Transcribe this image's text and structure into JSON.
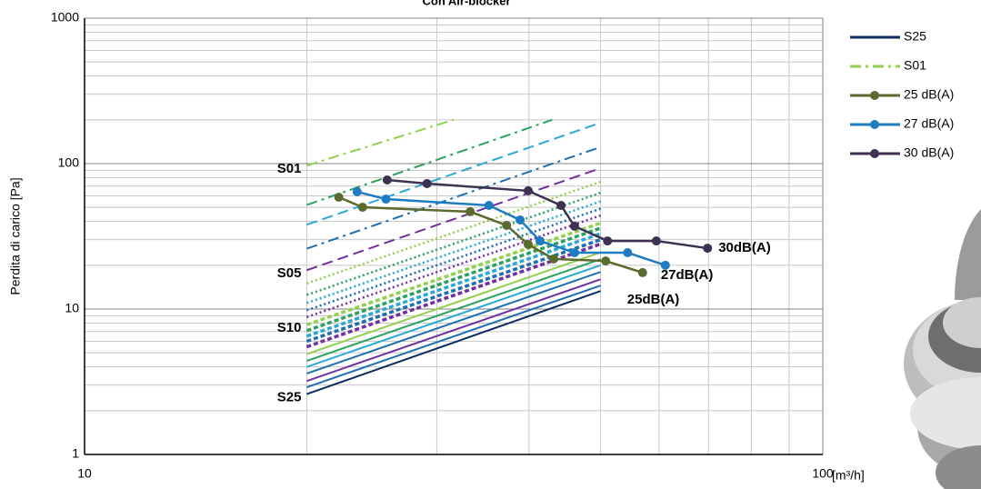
{
  "chart_data": {
    "type": "line",
    "title": "Con Air-blocker",
    "ylabel": "Perdita di carico [Pa]",
    "xlabel": "[m³/h]",
    "xlog": true,
    "ylog": true,
    "grid": true,
    "legend": "right",
    "xlim": [
      10,
      100
    ],
    "ylim": [
      1,
      1000
    ],
    "xticks": [
      10,
      100
    ],
    "yticks": [
      1,
      10,
      100,
      1000
    ],
    "xminorticks": [
      20,
      30,
      40,
      50,
      60,
      70,
      80,
      90
    ],
    "yminorticks": [
      2,
      3,
      4,
      5,
      6,
      7,
      8,
      9,
      20,
      30,
      40,
      50,
      60,
      70,
      80,
      90,
      200,
      300,
      400,
      500,
      600,
      700,
      800,
      900
    ],
    "series": [
      {
        "name": "S25",
        "color": "#0d2b5c",
        "dash": "solid",
        "tagged": true,
        "x": [
          20,
          50
        ],
        "values": [
          2.6,
          13.3
        ]
      },
      {
        "name": "S01",
        "color": "#92d050",
        "dash": "dashdot",
        "tagged": true,
        "x": [
          20,
          31.6
        ],
        "values": [
          97,
          200
        ]
      },
      {
        "name": "25 dB(A)",
        "color": "#5b6b2e",
        "markers": true,
        "label": "25dB(A)",
        "x": [
          22.1,
          23.8,
          33.3,
          37.3,
          39.9,
          43.2,
          50.8,
          57.0
        ],
        "values": [
          58.7,
          50.1,
          46.7,
          37.6,
          27.8,
          22.1,
          21.4,
          17.8
        ]
      },
      {
        "name": "27 dB(A)",
        "color": "#1f7cc0",
        "markers": true,
        "label": "27dB(A)",
        "x": [
          23.4,
          25.6,
          35.3,
          38.9,
          41.4,
          46.1,
          54.4,
          61.2
        ],
        "values": [
          64.0,
          57.0,
          51.6,
          41.0,
          29.4,
          24.4,
          24.4,
          20.0
        ]
      },
      {
        "name": "30 dB(A)",
        "color": "#3e3152",
        "markers": true,
        "label": "30dB(A)",
        "x": [
          25.7,
          29.1,
          39.9,
          44.2,
          46.1,
          51.1,
          59.5,
          69.8
        ],
        "values": [
          77.2,
          72.9,
          65.0,
          51.6,
          37.1,
          29.4,
          29.4,
          26.2
        ]
      },
      {
        "color": "#2ca25f",
        "dash": "dashdot",
        "x": [
          20,
          43
        ],
        "values": [
          52,
          200
        ]
      },
      {
        "color": "#29a8d8",
        "dash": "dash",
        "x": [
          20,
          50
        ],
        "values": [
          38,
          191
        ]
      },
      {
        "color": "#1f6fb0",
        "dash": "dashdot",
        "x": [
          20,
          50
        ],
        "values": [
          26,
          130
        ]
      },
      {
        "color": "#7030a0",
        "dash": "dash",
        "label": "S05",
        "x": [
          20,
          50
        ],
        "values": [
          18.5,
          93
        ]
      },
      {
        "color": "#92d050",
        "dash": "dot",
        "x": [
          20,
          50
        ],
        "values": [
          15,
          75
        ]
      },
      {
        "color": "#2ca25f",
        "dash": "dot",
        "x": [
          20,
          50
        ],
        "values": [
          12.5,
          63
        ]
      },
      {
        "color": "#29a8d8",
        "dash": "dot",
        "x": [
          20,
          50
        ],
        "values": [
          11,
          55
        ]
      },
      {
        "color": "#1f6fb0",
        "dash": "dot",
        "x": [
          20,
          50
        ],
        "values": [
          9.8,
          49
        ]
      },
      {
        "color": "#7030a0",
        "dash": "dot",
        "x": [
          20,
          50
        ],
        "values": [
          8.8,
          44
        ]
      },
      {
        "color": "#92d050",
        "dash": "bigdash",
        "label": "S10",
        "x": [
          20,
          50
        ],
        "values": [
          7.8,
          39
        ]
      },
      {
        "color": "#2ca25f",
        "dash": "bigdash",
        "x": [
          20,
          50
        ],
        "values": [
          7.1,
          36
        ]
      },
      {
        "color": "#29a8d8",
        "dash": "bigdash",
        "x": [
          20,
          50
        ],
        "values": [
          6.5,
          33
        ]
      },
      {
        "color": "#1f6fb0",
        "dash": "bigdash",
        "x": [
          20,
          50
        ],
        "values": [
          6.0,
          30
        ]
      },
      {
        "color": "#7030a0",
        "dash": "bigdash",
        "x": [
          20,
          50
        ],
        "values": [
          5.5,
          28
        ]
      },
      {
        "color": "#92d050",
        "dash": "solid",
        "x": [
          20,
          50
        ],
        "values": [
          4.9,
          24.5
        ]
      },
      {
        "color": "#2ca25f",
        "dash": "solid",
        "x": [
          20,
          50
        ],
        "values": [
          4.4,
          22
        ]
      },
      {
        "color": "#29a8d8",
        "dash": "solid",
        "x": [
          20,
          50
        ],
        "values": [
          4.0,
          20
        ]
      },
      {
        "color": "#1f6fb0",
        "dash": "solid",
        "x": [
          20,
          50
        ],
        "values": [
          3.6,
          18
        ]
      },
      {
        "color": "#7030a0",
        "dash": "solid",
        "x": [
          20,
          50
        ],
        "values": [
          3.2,
          16
        ]
      },
      {
        "color": "#1f6fb0",
        "dash": "solid",
        "x": [
          20,
          50
        ],
        "values": [
          2.9,
          14.5
        ]
      }
    ]
  }
}
